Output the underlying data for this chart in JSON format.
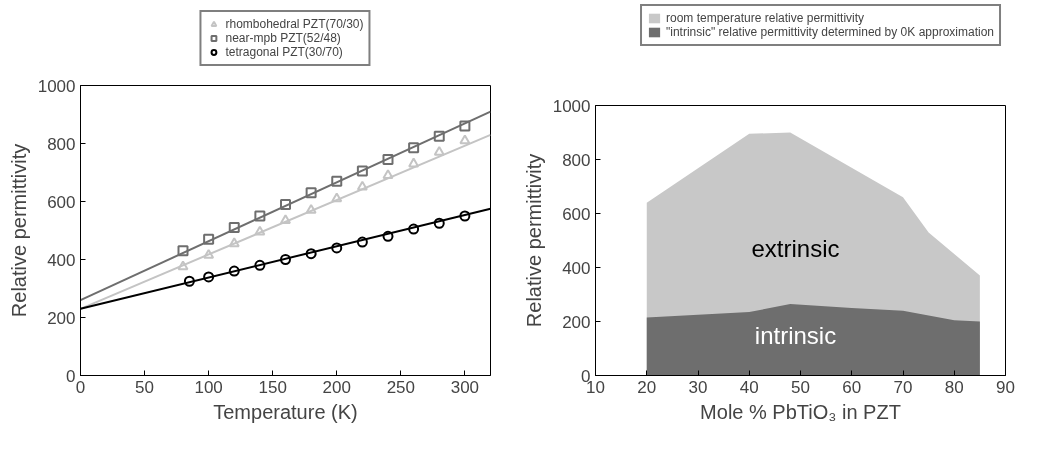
{
  "chart_data": [
    {
      "type": "scatter",
      "xlabel": "Temperature (K)",
      "ylabel": "Relative permittivity",
      "xlim": [
        0,
        320
      ],
      "ylim": [
        0,
        1000
      ],
      "xticks": [
        0,
        50,
        100,
        150,
        200,
        250,
        300
      ],
      "yticks": [
        0,
        200,
        400,
        600,
        800,
        1000
      ],
      "grid": false,
      "legend": "top",
      "series": [
        {
          "name": "rhombohedral PZT(70/30)",
          "color": "#c4c4c4",
          "marker": "triangle",
          "x": [
            80,
            100,
            120,
            140,
            160,
            180,
            200,
            220,
            240,
            260,
            280,
            300
          ],
          "values": [
            375,
            415,
            455,
            495,
            535,
            570,
            610,
            650,
            690,
            730,
            770,
            810
          ]
        },
        {
          "name": "near-mpb PZT(52/48)",
          "color": "#6e6e6e",
          "marker": "square",
          "x": [
            80,
            100,
            120,
            140,
            160,
            180,
            200,
            220,
            240,
            260,
            280,
            300
          ],
          "values": [
            430,
            470,
            510,
            550,
            590,
            630,
            670,
            705,
            745,
            785,
            825,
            860
          ]
        },
        {
          "name": "tetragonal PZT(30/70)",
          "color": "#000000",
          "marker": "circle",
          "x": [
            85,
            100,
            120,
            140,
            160,
            180,
            200,
            220,
            240,
            260,
            280,
            300
          ],
          "values": [
            325,
            340,
            360,
            380,
            400,
            420,
            440,
            460,
            480,
            505,
            525,
            550
          ]
        },
        {
          "type": "line",
          "color": "#c4c4c4",
          "x": [
            0,
            320
          ],
          "values": [
            230,
            830
          ]
        },
        {
          "type": "line",
          "color": "#6e6e6e",
          "x": [
            0,
            320
          ],
          "values": [
            260,
            910
          ]
        },
        {
          "type": "line",
          "color": "#000000",
          "x": [
            0,
            320
          ],
          "values": [
            230,
            575
          ]
        }
      ]
    },
    {
      "type": "area",
      "xlabel": "Mole % PbTiO₃ in PZT",
      "ylabel": "Relative permittivity",
      "xlim": [
        10,
        90
      ],
      "ylim": [
        0,
        1000
      ],
      "xticks": [
        10,
        20,
        30,
        40,
        50,
        60,
        70,
        80,
        90
      ],
      "yticks": [
        0,
        200,
        400,
        600,
        800,
        1000
      ],
      "grid": false,
      "legend": "top",
      "series": [
        {
          "name": "room temperature relative permittivity",
          "color": "#c8c8c8",
          "x": [
            20,
            40,
            48,
            70,
            75,
            85
          ],
          "values": [
            640,
            895,
            900,
            660,
            530,
            370
          ]
        },
        {
          "name": "\"intrinsic\" relative permittivity determined by 0K approximation",
          "color": "#6e6e6e",
          "x": [
            20,
            40,
            48,
            60,
            70,
            80,
            85
          ],
          "values": [
            215,
            235,
            265,
            250,
            240,
            205,
            200
          ]
        }
      ],
      "annotations": [
        "extrinsic",
        "intrinsic"
      ]
    }
  ]
}
